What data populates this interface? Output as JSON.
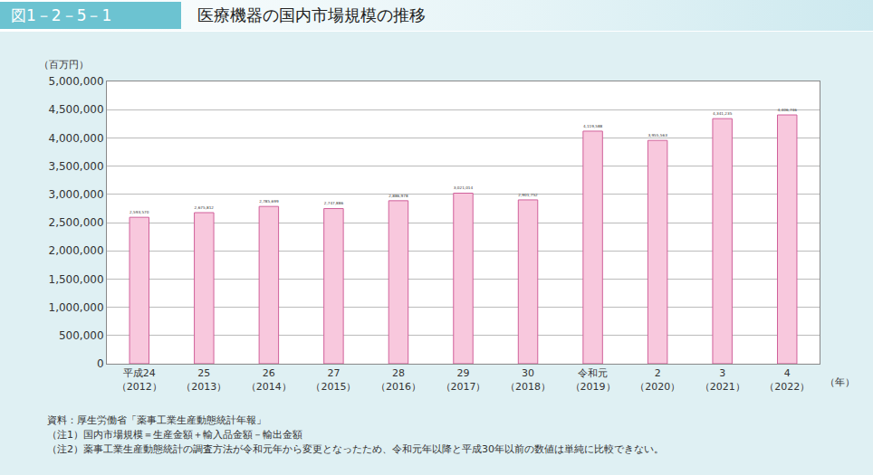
{
  "chart_data": {
    "type": "bar",
    "figure_label": "図1－2－5－1",
    "title": "医療機器の国内市場規模の推移",
    "y_label": "（百万円）",
    "x_label": "（年）",
    "categories": [
      "平成24\n（2012）",
      "25\n（2013）",
      "26\n（2014）",
      "27\n（2015）",
      "28\n（2016）",
      "29\n（2017）",
      "30\n（2018）",
      "令和元\n（2019）",
      "2\n（2020）",
      "3\n（2021）",
      "4\n（2022）"
    ],
    "values": [
      2593570,
      2675812,
      2785699,
      2747886,
      2886978,
      3021014,
      2901752,
      4119588,
      3955563,
      4341235,
      4406746
    ],
    "value_labels": [
      "2,593,570",
      "2,675,812",
      "2,785,699",
      "2,747,886",
      "2,886,978",
      "3,021,014",
      "2,901,752",
      "4,119,588",
      "3,955,563",
      "4,341,235",
      "4,406,746"
    ],
    "data_labels": true,
    "color": "#f8c8dd",
    "ylim": [
      0,
      5000000
    ],
    "yticks": [
      0,
      {
        "value": 500000,
        "label": "500,000"
      },
      {
        "value": 1000000,
        "label": "1,000,000"
      },
      {
        "value": 1500000,
        "label": "1,500,000"
      },
      {
        "value": 2000000,
        "label": "2,000,000"
      },
      {
        "value": 2500000,
        "label": "2,500,000"
      },
      {
        "value": 3000000,
        "label": "3,000,000"
      },
      {
        "value": 3500000,
        "label": "3,500,000"
      },
      {
        "value": 4000000,
        "label": "4,000,000"
      },
      {
        "value": 4500000,
        "label": "4,500,000"
      },
      {
        "value": 5000000,
        "label": "5,000,000"
      }
    ],
    "grid": true,
    "source": "資料：厚生労働省「薬事工業生産動態統計年報」",
    "notes": [
      "（注1）国内市場規模＝生産金額＋輸入品金額－輸出金額",
      "（注2）薬事工業生産動態統計の調査方法が令和元年から変更となったため、令和元年以降と平成30年以前の数値は単純に比較できない。"
    ]
  }
}
